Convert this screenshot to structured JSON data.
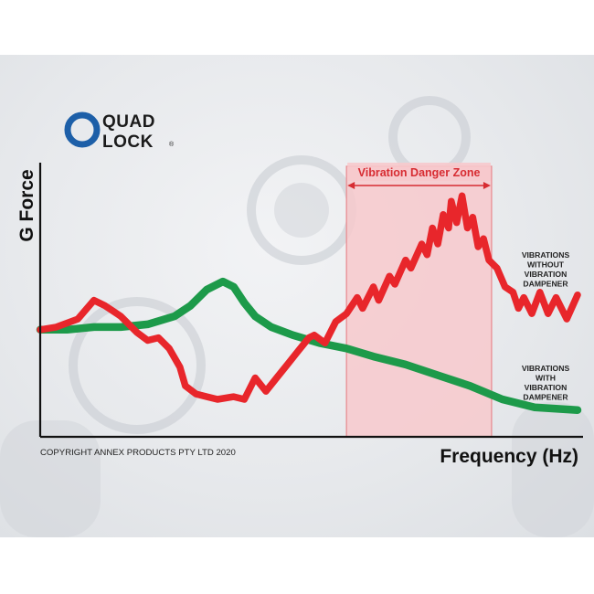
{
  "brand": {
    "line1": "QUAD",
    "line2": "LOCK",
    "reg": "®",
    "ring_color": "#1d5fa8"
  },
  "copyright": "COPYRIGHT ANNEX PRODUCTS PTY LTD 2020",
  "colors": {
    "undamped": "#e8262b",
    "damped": "#1d9a4a",
    "zone_fill": "#f7c9cc",
    "zone_edge": "#e88e93",
    "axis": "#111111"
  },
  "chart_data": {
    "type": "line",
    "xlabel": "Frequency (Hz)",
    "ylabel": "G Force",
    "xlim": [
      0,
      100
    ],
    "ylim": [
      0,
      100
    ],
    "grid": false,
    "x_ticks": false,
    "y_ticks": false,
    "shaded_region": {
      "label": "Vibration Danger Zone",
      "x_start": 57,
      "x_end": 84
    },
    "series": [
      {
        "name": "VIBRATIONS WITHOUT VIBRATION DAMPENER",
        "label_lines": [
          "VIBRATIONS",
          "WITHOUT",
          "VIBRATION",
          "DAMPENER"
        ],
        "color": "#e8262b",
        "x": [
          0,
          3,
          7,
          10,
          12,
          15,
          18,
          20,
          22,
          24,
          26,
          27,
          29,
          31,
          33,
          36,
          38,
          40,
          42,
          44,
          46,
          48,
          50,
          51,
          53,
          55,
          57,
          59,
          60,
          62,
          63,
          65,
          66,
          68,
          69,
          71,
          72,
          73,
          74,
          75,
          76,
          76.5,
          77.5,
          78.5,
          79.5,
          80.5,
          81.5,
          82.5,
          83.5,
          85,
          86.5,
          88,
          89,
          90,
          91.5,
          93,
          94.5,
          96,
          98,
          100
        ],
        "y": [
          40,
          41,
          44,
          51,
          49,
          45,
          39,
          36,
          37,
          33,
          26,
          19,
          16,
          15,
          14,
          15,
          14,
          22,
          17,
          22,
          27,
          32,
          37,
          38,
          35,
          43,
          46,
          52,
          48,
          56,
          51,
          60,
          57,
          66,
          63,
          72,
          68,
          78,
          72,
          83,
          78,
          88,
          80,
          90,
          78,
          82,
          71,
          74,
          66,
          63,
          56,
          54,
          48,
          52,
          46,
          54,
          46,
          52,
          44,
          53
        ]
      },
      {
        "name": "VIBRATIONS WITH VIBRATION DAMPENER",
        "label_lines": [
          "VIBRATIONS",
          "WITH",
          "VIBRATION",
          "DAMPENER"
        ],
        "color": "#1d9a4a",
        "x": [
          0,
          5,
          10,
          15,
          20,
          25,
          28,
          31,
          34,
          36,
          38,
          40,
          43,
          47,
          52,
          57,
          62,
          68,
          74,
          80,
          86,
          92,
          100
        ],
        "y": [
          40,
          40,
          41,
          41,
          42,
          45,
          49,
          55,
          58,
          56,
          50,
          45,
          41,
          38,
          35,
          33,
          30,
          27,
          23,
          19,
          14,
          11,
          10
        ]
      }
    ]
  }
}
